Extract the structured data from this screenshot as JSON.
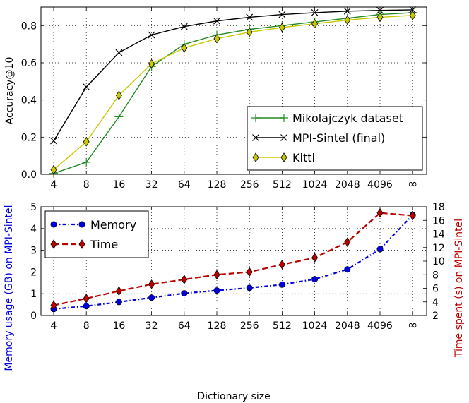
{
  "chart_data": [
    {
      "type": "line",
      "title": "",
      "xlabel": "",
      "ylabel": "Accuracy@10",
      "categories": [
        "4",
        "8",
        "16",
        "32",
        "64",
        "128",
        "256",
        "512",
        "1024",
        "2048",
        "4096",
        "∞"
      ],
      "ylim": [
        0,
        0.9
      ],
      "yticks": [
        "0.0",
        "0.2",
        "0.4",
        "0.6",
        "0.8"
      ],
      "grid": true,
      "legend_position": "lower-right",
      "series": [
        {
          "name": "Mikolajczyk dataset",
          "color": "#228b22",
          "marker": "plus",
          "values": [
            0.005,
            0.065,
            0.31,
            0.58,
            0.7,
            0.75,
            0.78,
            0.8,
            0.82,
            0.84,
            0.86,
            0.87
          ]
        },
        {
          "name": "MPI-Sintel (final)",
          "color": "#000000",
          "marker": "x",
          "values": [
            0.18,
            0.47,
            0.655,
            0.75,
            0.795,
            0.825,
            0.845,
            0.86,
            0.87,
            0.878,
            0.882,
            0.885
          ]
        },
        {
          "name": "Kitti",
          "color": "#c8c800",
          "marker": "diamond",
          "values": [
            0.025,
            0.175,
            0.425,
            0.595,
            0.68,
            0.73,
            0.765,
            0.79,
            0.81,
            0.83,
            0.845,
            0.855
          ]
        }
      ]
    },
    {
      "type": "line",
      "title": "",
      "xlabel": "Dictionary size",
      "ylabel": "Memory usage (GB) on MPI-Sintel",
      "ylabel_right": "Time spent (s) on MPI-Sintel",
      "categories": [
        "4",
        "8",
        "16",
        "32",
        "64",
        "128",
        "256",
        "512",
        "1024",
        "2048",
        "4096",
        "∞"
      ],
      "ylim": [
        0,
        5
      ],
      "ylim_right": [
        2,
        18
      ],
      "yticks": [
        "0",
        "1",
        "2",
        "3",
        "4",
        "5"
      ],
      "yticks_right": [
        "2",
        "4",
        "6",
        "8",
        "10",
        "12",
        "14",
        "16",
        "18"
      ],
      "grid": true,
      "legend_position": "upper-left",
      "series": [
        {
          "name": "Memory",
          "color": "#0000dd",
          "marker": "circle",
          "axis": "left",
          "values": [
            0.3,
            0.43,
            0.62,
            0.82,
            1.02,
            1.15,
            1.27,
            1.42,
            1.67,
            2.12,
            3.05,
            4.62
          ]
        },
        {
          "name": "Time",
          "color": "#bb0000",
          "marker": "diamond",
          "axis": "right",
          "values": [
            3.5,
            4.5,
            5.6,
            6.6,
            7.3,
            8.0,
            8.4,
            9.5,
            10.5,
            12.8,
            17.1,
            16.7
          ]
        }
      ]
    }
  ]
}
